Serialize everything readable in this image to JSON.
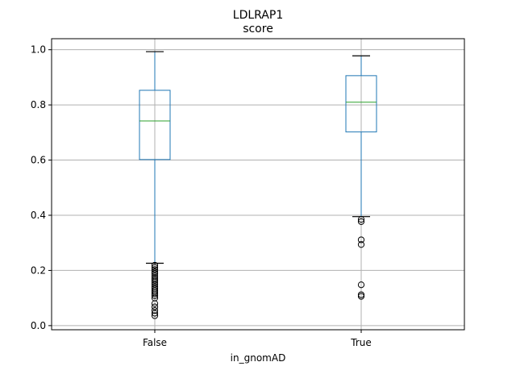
{
  "chart_data": {
    "type": "box",
    "suptitle": "LDLRAP1",
    "title": "score",
    "xlabel": "in_gnomAD",
    "ylabel": "",
    "ylim": [
      -0.015,
      1.04
    ],
    "yticks": [
      0.0,
      0.2,
      0.4,
      0.6,
      0.8,
      1.0
    ],
    "yticklabels": [
      "0.0",
      "0.2",
      "0.4",
      "0.6",
      "0.8",
      "1.0"
    ],
    "grid": true,
    "colors": {
      "box": "#1f77b4",
      "median": "#2ca02c",
      "whisker": "#1f77b4",
      "cap": "#000000",
      "grid": "#b0b0b0",
      "flier": "#000000"
    },
    "categories": [
      "False",
      "True"
    ],
    "boxes": [
      {
        "category": "False",
        "whislo": 0.226,
        "q1": 0.602,
        "med": 0.742,
        "q3": 0.853,
        "whishi": 0.993,
        "fliers": [
          0.036,
          0.045,
          0.055,
          0.068,
          0.08,
          0.1,
          0.108,
          0.115,
          0.122,
          0.128,
          0.135,
          0.142,
          0.15,
          0.158,
          0.165,
          0.172,
          0.18,
          0.188,
          0.195,
          0.203,
          0.211,
          0.219
        ]
      },
      {
        "category": "True",
        "whislo": 0.395,
        "q1": 0.702,
        "med": 0.81,
        "q3": 0.906,
        "whishi": 0.978,
        "fliers": [
          0.106,
          0.112,
          0.148,
          0.294,
          0.311,
          0.377,
          0.385
        ]
      }
    ]
  }
}
